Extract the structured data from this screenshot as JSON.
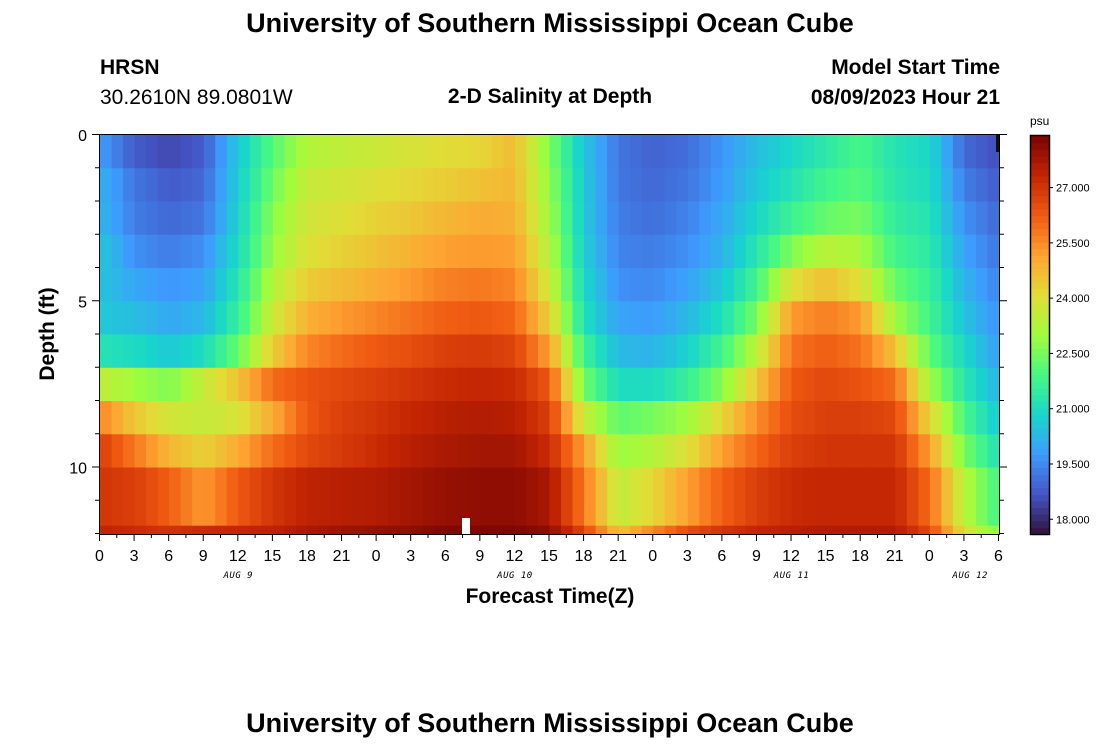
{
  "header": {
    "title_top": "University of Southern Mississippi Ocean Cube",
    "station": "HRSN",
    "coords": "30.2610N  89.0801W",
    "chart_title": "2-D Salinity at Depth",
    "model_start_label": "Model Start Time",
    "model_start_value": "08/09/2023 Hour 21",
    "title_bottom": "University of Southern Mississippi Ocean Cube"
  },
  "chart_data": {
    "type": "heatmap",
    "title": "2-D Salinity at Depth",
    "xlabel": "Forecast Time(Z)",
    "ylabel": "Depth (ft)",
    "x_ticklabels": [
      "0",
      "3",
      "6",
      "9",
      "12",
      "15",
      "18",
      "21",
      "0",
      "3",
      "6",
      "9",
      "12",
      "15",
      "18",
      "21",
      "0",
      "3",
      "6",
      "9",
      "12",
      "15",
      "18",
      "21",
      "0",
      "3",
      "6"
    ],
    "x_range_hours": [
      0,
      78
    ],
    "date_labels": [
      {
        "text": "AUG 9",
        "hour": 12
      },
      {
        "text": "AUG 10",
        "hour": 36
      },
      {
        "text": "AUG 11",
        "hour": 60
      },
      {
        "text": "AUG 12",
        "hour": 75.5
      }
    ],
    "y_ticks": [
      0,
      5,
      10
    ],
    "y_tick_labels": [
      "0",
      "5",
      "10"
    ],
    "y_range_ft": [
      0,
      12
    ],
    "colorbar": {
      "unit": "psu",
      "min": 17.6,
      "max": 28.4,
      "tick_values": [
        18.0,
        19.5,
        21.0,
        22.5,
        24.0,
        25.5,
        27.0
      ],
      "tick_labels": [
        "18.000",
        "19.500",
        "21.000",
        "22.500",
        "24.000",
        "25.500",
        "27.000"
      ],
      "palette": [
        "#30123b",
        "#4454c4",
        "#3e9bfe",
        "#18d6cb",
        "#46f884",
        "#a2fc3c",
        "#e1dd37",
        "#fea332",
        "#f05b12",
        "#c42503",
        "#7a0403"
      ]
    },
    "depth_levels_ft": [
      0.5,
      1.5,
      2.5,
      3.5,
      4.5,
      5.5,
      6.5,
      7.5,
      8.5,
      9.5,
      10.5,
      11.5
    ],
    "bottom_layer_depth_ft": 11.75,
    "profile_time_hours": [
      0,
      3,
      6,
      9,
      12,
      15,
      18,
      21,
      24,
      27,
      30,
      33,
      36,
      39,
      42,
      45,
      48,
      51,
      54,
      57,
      60,
      63,
      66,
      69,
      72,
      75,
      78
    ],
    "profiles_psu": [
      [
        19.8,
        20.2,
        20.3,
        20.6,
        20.5,
        20.6,
        21.2,
        23.5,
        25.6,
        26.8,
        27.0,
        27.4
      ],
      [
        18.8,
        19.2,
        19.3,
        19.6,
        20.0,
        20.4,
        21.0,
        23.0,
        24.5,
        25.8,
        26.8,
        27.2
      ],
      [
        18.5,
        18.8,
        19.0,
        19.3,
        19.7,
        20.0,
        20.6,
        22.6,
        23.8,
        24.8,
        26.2,
        27.0
      ],
      [
        18.8,
        19.0,
        19.2,
        19.6,
        19.9,
        20.3,
        21.0,
        23.6,
        23.6,
        24.3,
        25.3,
        27.2
      ],
      [
        20.6,
        20.7,
        20.8,
        21.0,
        21.3,
        21.6,
        22.3,
        24.6,
        23.9,
        25.0,
        26.3,
        27.3
      ],
      [
        22.1,
        22.4,
        22.7,
        22.9,
        23.3,
        23.7,
        24.4,
        26.0,
        25.0,
        26.0,
        27.0,
        27.4
      ],
      [
        23.3,
        23.6,
        23.8,
        24.0,
        24.4,
        24.9,
        25.6,
        26.4,
        26.3,
        26.6,
        27.4,
        27.7
      ],
      [
        23.5,
        23.8,
        24.0,
        24.3,
        24.7,
        25.3,
        26.0,
        26.6,
        26.8,
        26.9,
        27.5,
        27.9
      ],
      [
        23.7,
        24.0,
        24.3,
        24.6,
        25.0,
        25.6,
        26.3,
        26.8,
        27.0,
        27.2,
        27.6,
        28.0
      ],
      [
        23.9,
        24.2,
        24.5,
        24.9,
        25.3,
        25.9,
        26.5,
        27.0,
        27.3,
        27.5,
        27.8,
        28.1
      ],
      [
        24.1,
        24.4,
        24.8,
        25.2,
        25.7,
        26.2,
        26.8,
        27.2,
        27.5,
        27.7,
        28.0,
        28.3
      ],
      [
        24.2,
        24.6,
        25.0,
        25.3,
        25.8,
        26.3,
        26.9,
        27.3,
        27.6,
        27.8,
        28.1,
        28.3
      ],
      [
        24.7,
        24.8,
        24.9,
        25.2,
        25.6,
        26.1,
        26.7,
        27.2,
        27.5,
        27.8,
        28.1,
        28.3
      ],
      [
        22.6,
        22.8,
        23.0,
        23.3,
        23.7,
        24.3,
        25.2,
        26.3,
        26.8,
        27.2,
        27.7,
        28.1
      ],
      [
        20.5,
        20.6,
        20.6,
        20.7,
        20.9,
        21.1,
        21.7,
        22.4,
        23.6,
        25.2,
        25.8,
        26.6
      ],
      [
        19.2,
        19.2,
        19.3,
        19.4,
        19.6,
        19.9,
        20.3,
        21.0,
        22.2,
        22.9,
        23.5,
        24.6
      ],
      [
        18.9,
        19.0,
        19.1,
        19.3,
        19.5,
        19.8,
        20.2,
        21.0,
        22.5,
        23.3,
        24.2,
        25.6
      ],
      [
        19.1,
        19.2,
        19.4,
        19.6,
        19.9,
        20.3,
        20.8,
        21.6,
        23.0,
        24.0,
        25.2,
        26.5
      ],
      [
        19.7,
        19.8,
        20.0,
        20.2,
        20.6,
        21.1,
        21.8,
        22.7,
        24.2,
        25.2,
        26.2,
        27.0
      ],
      [
        20.4,
        20.6,
        20.9,
        21.3,
        21.8,
        22.5,
        23.4,
        24.5,
        25.5,
        26.1,
        26.8,
        27.3
      ],
      [
        20.9,
        21.2,
        21.7,
        22.6,
        24.0,
        25.3,
        25.9,
        26.3,
        26.5,
        26.8,
        27.2,
        27.5
      ],
      [
        21.4,
        21.8,
        22.3,
        23.4,
        24.6,
        25.7,
        26.2,
        26.6,
        26.8,
        27.0,
        27.3,
        27.6
      ],
      [
        21.9,
        22.1,
        22.5,
        23.1,
        24.0,
        25.3,
        25.9,
        26.4,
        26.8,
        27.0,
        27.3,
        27.6
      ],
      [
        21.2,
        21.3,
        21.5,
        21.8,
        22.3,
        23.0,
        24.6,
        26.0,
        26.6,
        27.0,
        27.3,
        27.6
      ],
      [
        20.9,
        21.0,
        21.2,
        21.4,
        21.6,
        21.8,
        22.2,
        23.0,
        24.2,
        25.2,
        26.0,
        26.6
      ],
      [
        19.0,
        19.3,
        19.6,
        19.9,
        20.2,
        20.5,
        20.9,
        21.3,
        21.9,
        22.5,
        23.3,
        24.0
      ],
      [
        18.6,
        18.8,
        19.0,
        19.2,
        19.4,
        19.6,
        19.8,
        20.2,
        20.6,
        21.1,
        21.8,
        22.6
      ]
    ]
  }
}
